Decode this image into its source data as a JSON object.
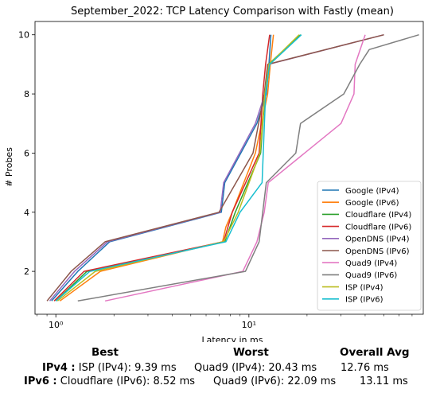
{
  "chart_data": {
    "type": "line",
    "title": "September_2022: TCP Latency Comparison with Fastly (mean)",
    "xlabel": "Latency in ms",
    "ylabel": "# Probes",
    "xscale": "log",
    "xlim": [
      0.78,
      80
    ],
    "ylim": [
      0.55,
      10.45
    ],
    "xticks": [
      {
        "value": 1,
        "label": "10⁰"
      },
      {
        "value": 10,
        "label": "10¹"
      }
    ],
    "yticks": [
      2,
      4,
      6,
      8,
      10
    ],
    "legend_position": "lower-right",
    "grid": false,
    "series": [
      {
        "name": "Google (IPv4)",
        "color": "#1f77b4",
        "x": [
          0.95,
          1.3,
          1.9,
          7.2,
          7.5,
          11,
          12.3,
          12.7,
          13
        ],
        "y": [
          1,
          2,
          3,
          4,
          5,
          7,
          8,
          9,
          10
        ]
      },
      {
        "name": "Google (IPv6)",
        "color": "#ff7f0e",
        "x": [
          1.05,
          1.7,
          7.3,
          7.6,
          8.2,
          10.8,
          12.5,
          12.9,
          13.4
        ],
        "y": [
          1,
          2,
          3,
          3.5,
          4,
          6,
          8,
          9,
          10
        ]
      },
      {
        "name": "Cloudflare (IPv4)",
        "color": "#2ca02c",
        "x": [
          1.0,
          1.45,
          7.5,
          8.5,
          11.5,
          12.1,
          12.6,
          18.5
        ],
        "y": [
          1,
          2,
          3,
          4,
          6,
          8,
          9,
          10
        ]
      },
      {
        "name": "Cloudflare (IPv6)",
        "color": "#d62728",
        "x": [
          0.98,
          1.4,
          7.4,
          8.2,
          11.3,
          11.8,
          12.2,
          12.8
        ],
        "y": [
          1,
          2,
          3,
          4,
          6,
          8,
          9,
          10
        ]
      },
      {
        "name": "OpenDNS (IPv4)",
        "color": "#9467bd",
        "x": [
          0.93,
          1.25,
          1.85,
          7.1,
          7.4,
          10.8,
          12.1,
          12.6,
          50
        ],
        "y": [
          1,
          2,
          3,
          4,
          5,
          7,
          8,
          9,
          10
        ]
      },
      {
        "name": "OpenDNS (IPv6)",
        "color": "#8c564b",
        "x": [
          0.9,
          1.2,
          1.8,
          7.0,
          10.5,
          12.0,
          12.5,
          50
        ],
        "y": [
          1,
          2,
          3,
          4,
          6,
          8,
          9,
          10
        ]
      },
      {
        "name": "Quad9 (IPv4)",
        "color": "#e377c2",
        "x": [
          1.8,
          9.3,
          11,
          12,
          12.6,
          30,
          35,
          35.5,
          40
        ],
        "y": [
          1,
          2,
          3,
          4,
          5,
          7,
          8,
          9,
          10
        ]
      },
      {
        "name": "Quad9 (IPv6)",
        "color": "#7f7f7f",
        "x": [
          1.3,
          9.6,
          11.3,
          12.3,
          17.5,
          18.5,
          31,
          37.5,
          42,
          76
        ],
        "y": [
          1,
          2,
          3,
          5,
          6,
          7,
          8,
          9,
          9.5,
          10
        ]
      },
      {
        "name": "ISP (IPv4)",
        "color": "#bcbd22",
        "x": [
          1.02,
          1.6,
          7.4,
          8.8,
          11.4,
          12.1,
          12.7,
          18.2
        ],
        "y": [
          1,
          2,
          3,
          4,
          6,
          8,
          9,
          10
        ]
      },
      {
        "name": "ISP (IPv6)",
        "color": "#17becf",
        "x": [
          1.0,
          1.5,
          7.6,
          9.0,
          11.7,
          12.2,
          12.8,
          18.7
        ],
        "y": [
          1,
          2,
          3,
          4,
          5,
          8,
          9,
          10
        ]
      }
    ]
  },
  "summary": {
    "headers": {
      "best": "Best",
      "worst": "Worst",
      "avg": "Overall Avg"
    },
    "ipv4": {
      "label": "IPv4 :",
      "best": "ISP (IPv4): 9.39 ms",
      "worst": "Quad9 (IPv4): 20.43 ms",
      "avg": "12.76 ms"
    },
    "ipv6": {
      "label": "IPv6 :",
      "best": "Cloudflare (IPv6): 8.52 ms",
      "worst": "Quad9 (IPv6): 22.09 ms",
      "avg": "13.11 ms"
    }
  }
}
